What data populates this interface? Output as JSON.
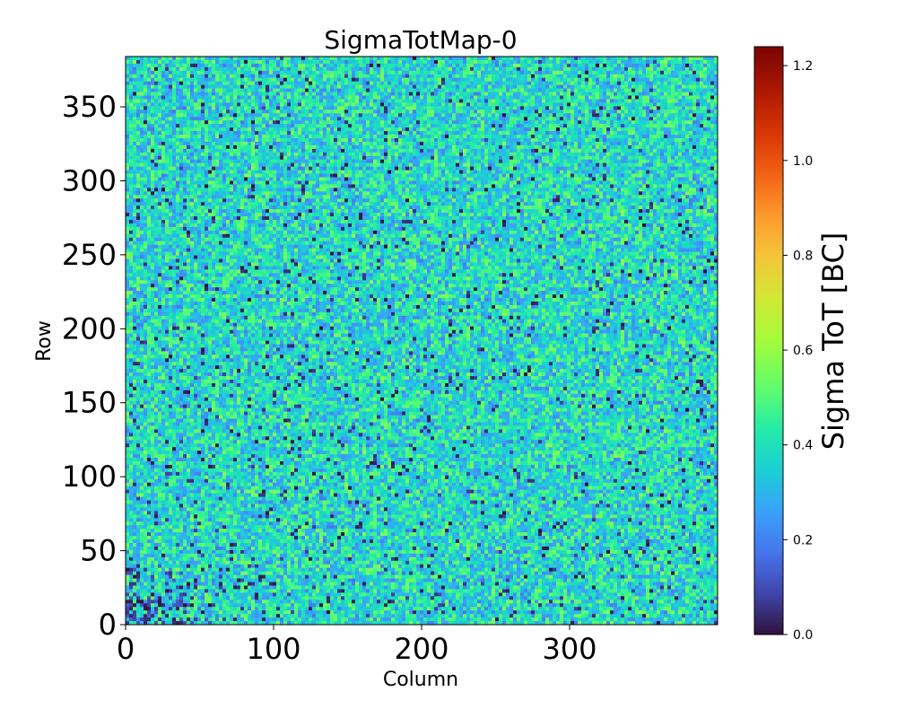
{
  "chart_data": {
    "type": "heatmap",
    "title": "SigmaTotMap-0",
    "xlabel": "Column",
    "ylabel": "Row",
    "xlim": [
      0,
      400
    ],
    "ylim": [
      0,
      384
    ],
    "x_ticks": [
      0,
      100,
      200,
      300
    ],
    "x_tick_labels": [
      "0",
      "100",
      "200",
      "300"
    ],
    "y_ticks": [
      0,
      50,
      100,
      150,
      200,
      250,
      300,
      350
    ],
    "y_tick_labels": [
      "0",
      "50",
      "100",
      "150",
      "200",
      "250",
      "300",
      "350"
    ],
    "grid": false,
    "colormap": "turbo",
    "colorbar": {
      "label": "Sigma ToT [BC]",
      "range": [
        0.0,
        1.24
      ],
      "ticks": [
        0.0,
        0.2,
        0.4,
        0.6,
        0.8,
        1.0,
        1.2
      ],
      "tick_labels": [
        "0.0",
        "0.2",
        "0.4",
        "0.6",
        "0.8",
        "1.0",
        "1.2"
      ]
    },
    "value_distribution": {
      "typical_range": [
        0.2,
        0.5
      ],
      "dominant_value": 0.38,
      "low_value_region": "bottom-left corner (columns 0-60, rows 0-40)"
    }
  }
}
